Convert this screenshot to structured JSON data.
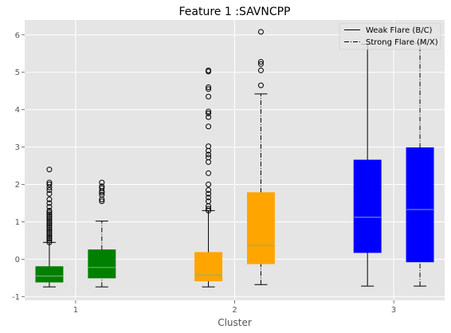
{
  "chart_data": {
    "type": "boxplot",
    "title": "Feature 1 :SAVNCPP",
    "xlabel": "Cluster",
    "ylabel": "",
    "ylim": [
      -1.1,
      6.4
    ],
    "xlim": [
      0.68,
      3.32
    ],
    "yticks": [
      -1,
      0,
      1,
      2,
      3,
      4,
      5,
      6
    ],
    "categories": [
      "1",
      "2",
      "3"
    ],
    "x_positions": [
      1,
      2,
      3
    ],
    "grid": true,
    "legend_position": "top-right",
    "series": [
      {
        "name": "Weak Flare (B/C)",
        "line_style": "solid",
        "offset": -0.165,
        "boxes": [
          {
            "category": "1",
            "whisker_low": -0.74,
            "q1": -0.61,
            "median": -0.45,
            "q3": -0.2,
            "whisker_high": 0.45,
            "fliers": [
              0.45,
              0.5,
              0.55,
              0.6,
              0.65,
              0.7,
              0.75,
              0.8,
              0.85,
              0.9,
              0.95,
              1.0,
              1.05,
              1.1,
              1.15,
              1.2,
              1.25,
              1.3,
              1.4,
              1.5,
              1.6,
              1.75,
              1.85,
              1.92,
              2.0,
              2.05,
              2.4
            ],
            "color": "#008000"
          },
          {
            "category": "2",
            "whisker_low": -0.74,
            "q1": -0.58,
            "median": -0.42,
            "q3": 0.18,
            "whisker_high": 1.3,
            "fliers": [
              1.3,
              1.35,
              1.42,
              1.55,
              1.65,
              1.75,
              1.85,
              2.0,
              2.3,
              2.6,
              2.72,
              2.8,
              2.9,
              3.02,
              3.55,
              3.8,
              3.9,
              3.95,
              4.35,
              4.55,
              4.6,
              5.02,
              5.05
            ],
            "color": "#FFA500"
          },
          {
            "category": "3",
            "whisker_low": -0.72,
            "q1": 0.18,
            "median": 1.12,
            "q3": 2.65,
            "whisker_high": 5.75,
            "fliers": [],
            "color": "#0000FF"
          }
        ]
      },
      {
        "name": "Strong Flare (M/X)",
        "line_style": "dashdot",
        "offset": 0.165,
        "boxes": [
          {
            "category": "1",
            "whisker_low": -0.74,
            "q1": -0.5,
            "median": -0.22,
            "q3": 0.25,
            "whisker_high": 1.02,
            "fliers": [
              1.55,
              1.6,
              1.72,
              1.78,
              1.82,
              1.9,
              1.95,
              2.05
            ],
            "color": "#008000"
          },
          {
            "category": "2",
            "whisker_low": -0.68,
            "q1": -0.12,
            "median": 0.37,
            "q3": 1.78,
            "whisker_high": 4.42,
            "fliers": [
              4.65,
              5.05,
              5.22,
              5.28,
              6.08
            ],
            "color": "#FFA500"
          },
          {
            "category": "3",
            "whisker_low": -0.72,
            "q1": -0.07,
            "median": 1.33,
            "q3": 2.98,
            "whisker_high": 5.78,
            "fliers": [],
            "color": "#0000FF"
          }
        ]
      }
    ],
    "colors": {
      "plot_background": "#E5E5E5",
      "grid": "#FFFFFF",
      "whisker": "#000000",
      "median": "#82B37A",
      "flier_edge": "#000000"
    }
  }
}
